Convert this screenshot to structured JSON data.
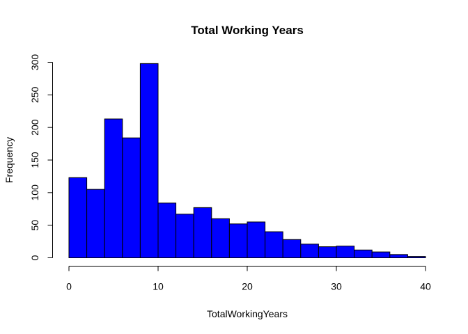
{
  "chart_data": {
    "type": "bar",
    "subtype": "histogram",
    "title": "Total Working Years",
    "xlabel": "TotalWorkingYears",
    "ylabel": "Frequency",
    "bin_width": 2,
    "bins": [
      {
        "start": 0,
        "end": 2,
        "count": 123
      },
      {
        "start": 2,
        "end": 4,
        "count": 105
      },
      {
        "start": 4,
        "end": 6,
        "count": 213
      },
      {
        "start": 6,
        "end": 8,
        "count": 184
      },
      {
        "start": 8,
        "end": 10,
        "count": 298
      },
      {
        "start": 10,
        "end": 12,
        "count": 84
      },
      {
        "start": 12,
        "end": 14,
        "count": 67
      },
      {
        "start": 14,
        "end": 16,
        "count": 77
      },
      {
        "start": 16,
        "end": 18,
        "count": 60
      },
      {
        "start": 18,
        "end": 20,
        "count": 52
      },
      {
        "start": 20,
        "end": 22,
        "count": 55
      },
      {
        "start": 22,
        "end": 24,
        "count": 40
      },
      {
        "start": 24,
        "end": 26,
        "count": 28
      },
      {
        "start": 26,
        "end": 28,
        "count": 21
      },
      {
        "start": 28,
        "end": 30,
        "count": 17
      },
      {
        "start": 30,
        "end": 32,
        "count": 18
      },
      {
        "start": 32,
        "end": 34,
        "count": 12
      },
      {
        "start": 34,
        "end": 36,
        "count": 9
      },
      {
        "start": 36,
        "end": 38,
        "count": 5
      },
      {
        "start": 38,
        "end": 40,
        "count": 2
      }
    ],
    "xlim": [
      0,
      40
    ],
    "ylim": [
      0,
      300
    ],
    "x_ticks": [
      0,
      10,
      20,
      30,
      40
    ],
    "y_ticks": [
      0,
      50,
      100,
      150,
      200,
      250,
      300
    ],
    "bar_color": "#0000FF",
    "bar_border_color": "#000000",
    "grid": false,
    "legend": "none"
  }
}
